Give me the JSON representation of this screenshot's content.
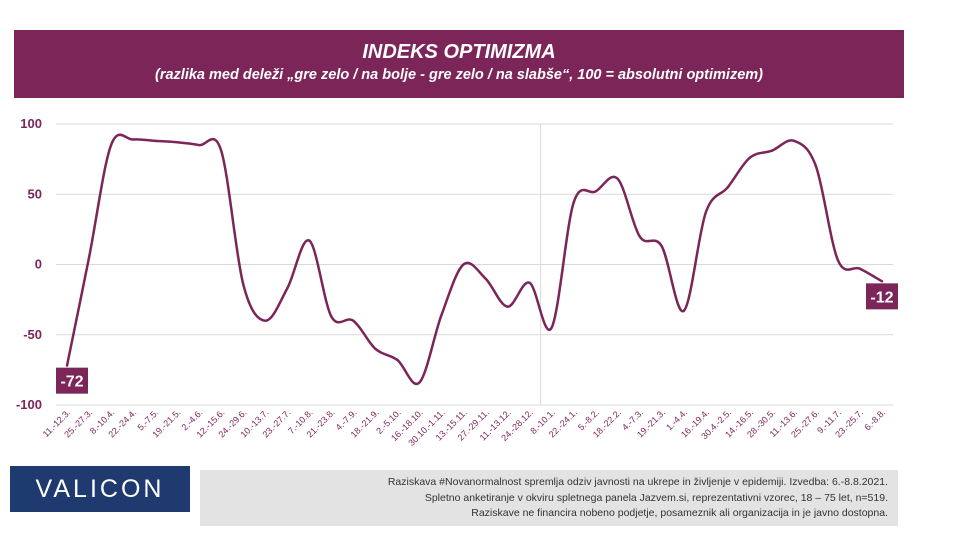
{
  "header": {
    "title": "INDEKS OPTIMIZMA",
    "subtitle": "(razlika med deleži „gre zelo / na bolje - gre zelo / na slabše“, 100 = absolutni optimizem)"
  },
  "footer": {
    "logo": "VALICON",
    "note_lines": [
      "Raziskava #Novanormalnost spremlja odziv javnosti na ukrepe in življenje v epidemiji. Izvedba: 6.-8.8.2021.",
      "Spletno anketiranje v okviru spletnega panela Jazvem.si, reprezentativni vzorec, 18 – 75 let, n=519.",
      "Raziskave ne financira nobeno podjetje, posameznik ali organizacija in je javno dostopna."
    ]
  },
  "colors": {
    "accent": "#7b2559",
    "logo_bg": "#1e3a6e",
    "note_bg": "#e3e3e3",
    "grid": "#d9d9d9"
  },
  "chart_data": {
    "type": "line",
    "ylim": [
      -100,
      100
    ],
    "yticks": [
      100,
      50,
      0,
      -50,
      -100
    ],
    "grid": true,
    "categories": [
      "11.-12.3.",
      "25.-27.3.",
      "8.-10.4.",
      "22.-24.4.",
      "5.-7.5.",
      "19.-21.5.",
      "2.-4.6.",
      "12.-15.6.",
      "24.-29.6.",
      "10.-13.7.",
      "23.-27.7.",
      "7.-10.8.",
      "21.-23.8.",
      "4.-7.9.",
      "18.-21.9.",
      "2.-5.10.",
      "16.-18.10.",
      "30.10.-1.11.",
      "13.-15.11.",
      "27.-29.11.",
      "11.-13.12.",
      "24.-28.12.",
      "8.-10.1.",
      "22.-24.1.",
      "5.-8.2.",
      "18.-22.2.",
      "4.-7.3.",
      "19.-21.3.",
      "1.-4.4.",
      "16.-19.4.",
      "30.4.-2.5.",
      "14.-16.5.",
      "28.-30.5.",
      "11.-13.6.",
      "25.-27.6.",
      "9.-11.7.",
      "23.-25.7.",
      "6.-8.8."
    ],
    "series": [
      {
        "values": [
          -72,
          5,
          85,
          89,
          88,
          87,
          85,
          81,
          -14,
          -40,
          -17,
          17,
          -37,
          -40,
          -60,
          -68,
          -84,
          -36,
          0,
          -10,
          -30,
          -13,
          -45,
          44,
          52,
          61,
          20,
          13,
          -33,
          37,
          55,
          76,
          81,
          88,
          70,
          3,
          -3,
          -12
        ]
      }
    ],
    "data_labels": [
      {
        "index": 0,
        "text": "-72"
      },
      {
        "index": 37,
        "text": "-12"
      }
    ],
    "divider_index": 22
  }
}
